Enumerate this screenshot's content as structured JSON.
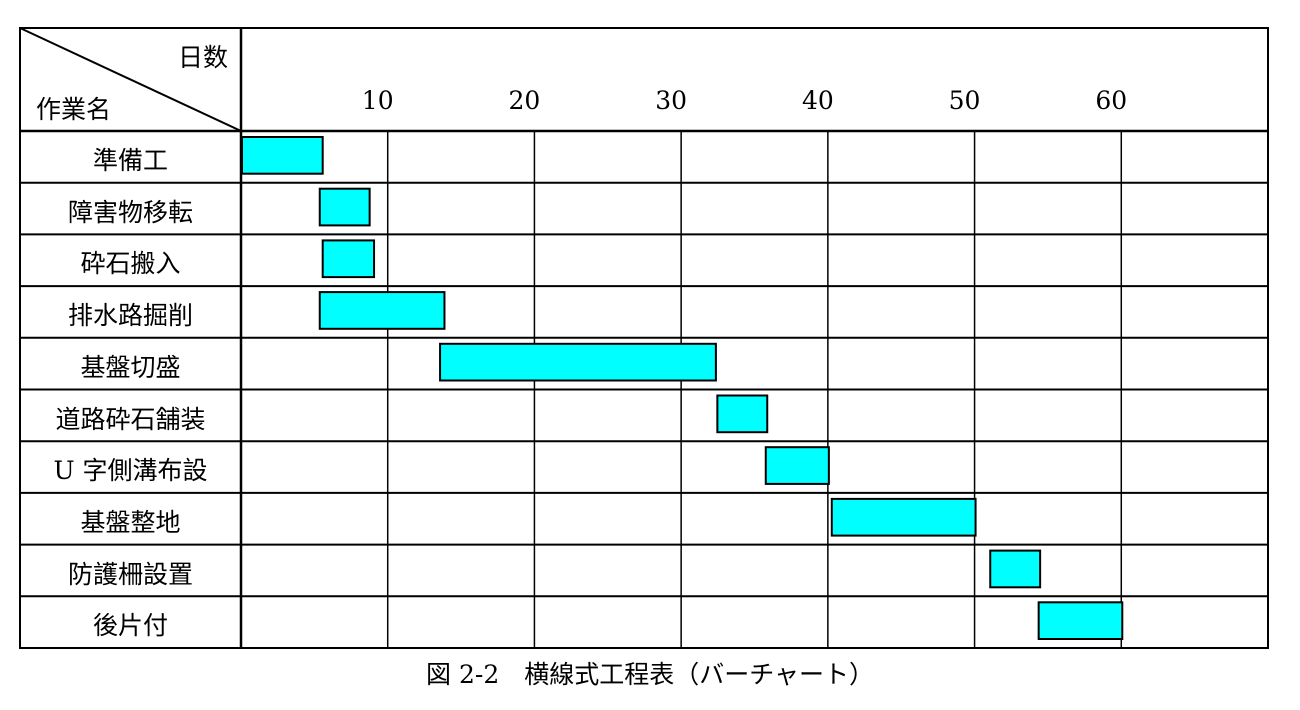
{
  "chart_data": {
    "type": "gantt",
    "title": "図 2-2　横線式工程表（バーチャート）",
    "header_top_label": "日数",
    "header_left_label": "作業名",
    "xlim": [
      0,
      70
    ],
    "x_ticks": [
      10,
      20,
      30,
      40,
      50,
      60
    ],
    "grid": true,
    "bar_color": "#00FFFF",
    "tasks": [
      {
        "name": "準備工",
        "start": 0,
        "end": 5.5
      },
      {
        "name": "障害物移転",
        "start": 5.3,
        "end": 8.7
      },
      {
        "name": "砕石搬入",
        "start": 5.5,
        "end": 9
      },
      {
        "name": "排水路掘削",
        "start": 5.3,
        "end": 13.8
      },
      {
        "name": "基盤切盛",
        "start": 13.5,
        "end": 32.3
      },
      {
        "name": "道路砕石舗装",
        "start": 32.4,
        "end": 35.8
      },
      {
        "name": "U 字側溝布設",
        "start": 35.7,
        "end": 40
      },
      {
        "name": "基盤整地",
        "start": 40.2,
        "end": 50
      },
      {
        "name": "防護柵設置",
        "start": 51,
        "end": 54.4
      },
      {
        "name": "後片付",
        "start": 54.3,
        "end": 60
      }
    ]
  }
}
